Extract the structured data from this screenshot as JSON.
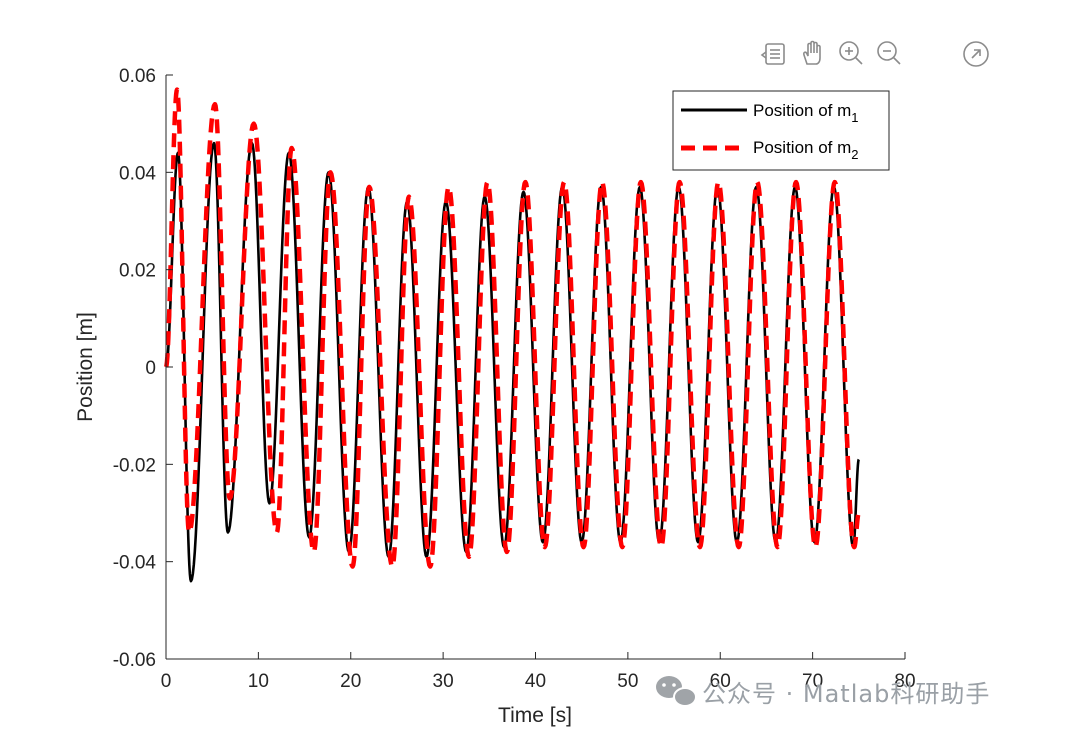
{
  "toolbar": {
    "icons": [
      "data-tips-icon",
      "pan-hand-icon",
      "zoom-in-icon",
      "zoom-out-icon",
      "restore-view-icon"
    ]
  },
  "chart_data": {
    "type": "line",
    "xlabel": "Time [s]",
    "ylabel": "Position [m]",
    "xlim": [
      0,
      80
    ],
    "ylim": [
      -0.06,
      0.06
    ],
    "xticks": [
      0,
      10,
      20,
      30,
      40,
      50,
      60,
      70,
      80
    ],
    "yticks": [
      -0.06,
      -0.04,
      -0.02,
      0,
      0.02,
      0.04,
      0.06
    ],
    "xtick_labels": [
      "0",
      "10",
      "20",
      "30",
      "40",
      "50",
      "60",
      "70",
      "80"
    ],
    "ytick_labels": [
      "-0.06",
      "-0.04",
      "-0.02",
      "0",
      "0.02",
      "0.04",
      "0.06"
    ],
    "grid": false,
    "legend_position": "top-right",
    "series": [
      {
        "name": "Position of m",
        "subscript": "1",
        "color": "#000000",
        "style": "solid",
        "t_end": 75,
        "extrema": [
          [
            0,
            0
          ],
          [
            1.3,
            0.044
          ],
          [
            2.7,
            -0.044
          ],
          [
            5.2,
            0.046
          ],
          [
            6.7,
            -0.034
          ],
          [
            9.3,
            0.046
          ],
          [
            11.2,
            -0.028
          ],
          [
            13.3,
            0.044
          ],
          [
            15.5,
            -0.035
          ],
          [
            17.6,
            0.04
          ],
          [
            19.8,
            -0.038
          ],
          [
            21.9,
            0.037
          ],
          [
            24.1,
            -0.039
          ],
          [
            26.1,
            0.034
          ],
          [
            28.2,
            -0.039
          ],
          [
            30.3,
            0.034
          ],
          [
            32.5,
            -0.038
          ],
          [
            34.5,
            0.035
          ],
          [
            36.6,
            -0.037
          ],
          [
            38.7,
            0.036
          ],
          [
            40.8,
            -0.036
          ],
          [
            42.9,
            0.037
          ],
          [
            45.0,
            -0.036
          ],
          [
            47.1,
            0.037
          ],
          [
            49.2,
            -0.036
          ],
          [
            51.3,
            0.037
          ],
          [
            53.4,
            -0.036
          ],
          [
            55.5,
            0.037
          ],
          [
            57.6,
            -0.036
          ],
          [
            59.7,
            0.037
          ],
          [
            61.8,
            -0.036
          ],
          [
            63.9,
            0.037
          ],
          [
            66.0,
            -0.036
          ],
          [
            68.1,
            0.037
          ],
          [
            70.2,
            -0.036
          ],
          [
            72.3,
            0.037
          ],
          [
            74.4,
            -0.037
          ],
          [
            75,
            -0.019
          ]
        ]
      },
      {
        "name": "Position of m",
        "subscript": "2",
        "color": "#ff0000",
        "style": "dashed",
        "t_end": 75,
        "extrema": [
          [
            0,
            0
          ],
          [
            1.2,
            0.057
          ],
          [
            2.5,
            -0.034
          ],
          [
            5.3,
            0.054
          ],
          [
            6.9,
            -0.027
          ],
          [
            9.5,
            0.05
          ],
          [
            12.0,
            -0.034
          ],
          [
            13.6,
            0.045
          ],
          [
            16.0,
            -0.038
          ],
          [
            17.8,
            0.04
          ],
          [
            20.2,
            -0.041
          ],
          [
            22.0,
            0.037
          ],
          [
            24.5,
            -0.041
          ],
          [
            26.3,
            0.035
          ],
          [
            28.6,
            -0.041
          ],
          [
            30.6,
            0.037
          ],
          [
            32.8,
            -0.039
          ],
          [
            34.8,
            0.038
          ],
          [
            36.9,
            -0.038
          ],
          [
            38.9,
            0.038
          ],
          [
            41.0,
            -0.037
          ],
          [
            43.1,
            0.038
          ],
          [
            45.2,
            -0.037
          ],
          [
            47.2,
            0.038
          ],
          [
            49.4,
            -0.037
          ],
          [
            51.4,
            0.038
          ],
          [
            53.6,
            -0.037
          ],
          [
            55.6,
            0.038
          ],
          [
            57.8,
            -0.037
          ],
          [
            59.8,
            0.038
          ],
          [
            62.0,
            -0.037
          ],
          [
            64.0,
            0.038
          ],
          [
            66.2,
            -0.037
          ],
          [
            68.2,
            0.038
          ],
          [
            70.3,
            -0.037
          ],
          [
            72.4,
            0.038
          ],
          [
            74.5,
            -0.037
          ],
          [
            75,
            -0.03
          ]
        ]
      }
    ]
  },
  "watermark": {
    "text": "公众号 · Matlab科研助手"
  }
}
